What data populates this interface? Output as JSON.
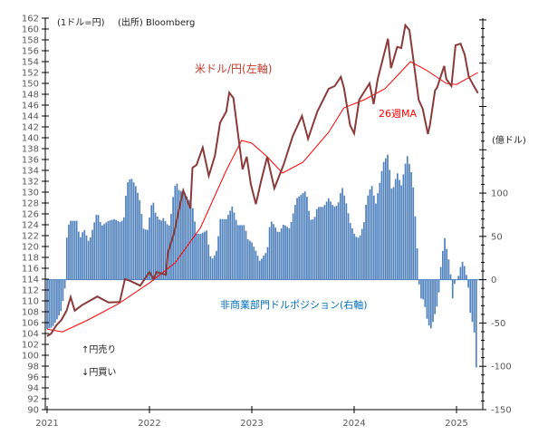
{
  "chart_data": {
    "type": "line+bar",
    "unit_note": "(1ドル=円)",
    "source": "(出所) Bloomberg",
    "right_unit": "(億ドル)",
    "annotations": {
      "yen_sell": "↑円売り",
      "yen_buy": "↓円買い"
    },
    "left_axis": {
      "range": [
        90,
        162
      ],
      "step": 2
    },
    "right_axis": {
      "range": [
        -150,
        302
      ],
      "ticks": [
        -150,
        -100,
        -50,
        0,
        50,
        100
      ]
    },
    "x_axis": {
      "range": [
        2021,
        2025.3
      ],
      "ticks": [
        2021,
        2022,
        2023,
        2024,
        2025
      ],
      "tick_labels": [
        "2021",
        "2022",
        "2023",
        "2024",
        "2025"
      ]
    },
    "colors": {
      "usdjpy": "#8b3a3a",
      "ma": "#ff0000",
      "bars": "#4f81bd",
      "bar_label": "#0070c0",
      "usdjpy_label": "#c0392b"
    },
    "series": [
      {
        "name": "米ドル/円(左軸)",
        "axis": "left",
        "kind": "line",
        "points": [
          [
            2021.0,
            103.5
          ],
          [
            2021.04,
            104
          ],
          [
            2021.09,
            105.5
          ],
          [
            2021.14,
            106.5
          ],
          [
            2021.19,
            108.2
          ],
          [
            2021.23,
            110.7
          ],
          [
            2021.27,
            108.2
          ],
          [
            2021.34,
            109.2
          ],
          [
            2021.49,
            110.8
          ],
          [
            2021.6,
            109.7
          ],
          [
            2021.71,
            109.8
          ],
          [
            2021.76,
            114
          ],
          [
            2021.81,
            113.7
          ],
          [
            2021.91,
            112.8
          ],
          [
            2022.0,
            115.3
          ],
          [
            2022.04,
            114
          ],
          [
            2022.07,
            115.3
          ],
          [
            2022.16,
            114.8
          ],
          [
            2022.18,
            118.7
          ],
          [
            2022.24,
            122.5
          ],
          [
            2022.33,
            130.3
          ],
          [
            2022.4,
            127
          ],
          [
            2022.42,
            134.5
          ],
          [
            2022.46,
            135
          ],
          [
            2022.52,
            138.2
          ],
          [
            2022.58,
            133
          ],
          [
            2022.64,
            136.7
          ],
          [
            2022.69,
            142.8
          ],
          [
            2022.75,
            144.8
          ],
          [
            2022.78,
            148.3
          ],
          [
            2022.82,
            147.3
          ],
          [
            2022.87,
            140
          ],
          [
            2022.91,
            134.2
          ],
          [
            2022.95,
            136.5
          ],
          [
            2022.99,
            131.5
          ],
          [
            2023.04,
            127.8
          ],
          [
            2023.09,
            132
          ],
          [
            2023.15,
            136.5
          ],
          [
            2023.22,
            130.7
          ],
          [
            2023.31,
            135
          ],
          [
            2023.4,
            140.3
          ],
          [
            2023.49,
            144
          ],
          [
            2023.55,
            139.8
          ],
          [
            2023.64,
            144.8
          ],
          [
            2023.75,
            149
          ],
          [
            2023.81,
            149.5
          ],
          [
            2023.87,
            151.2
          ],
          [
            2023.9,
            149.2
          ],
          [
            2023.96,
            142.3
          ],
          [
            2024.0,
            140.8
          ],
          [
            2024.05,
            147
          ],
          [
            2024.15,
            150
          ],
          [
            2024.19,
            146.2
          ],
          [
            2024.23,
            150.8
          ],
          [
            2024.33,
            158.2
          ],
          [
            2024.36,
            152.8
          ],
          [
            2024.42,
            156.7
          ],
          [
            2024.46,
            156.5
          ],
          [
            2024.5,
            160.7
          ],
          [
            2024.54,
            159.8
          ],
          [
            2024.58,
            154.2
          ],
          [
            2024.63,
            147
          ],
          [
            2024.67,
            145.3
          ],
          [
            2024.72,
            140.7
          ],
          [
            2024.74,
            142.3
          ],
          [
            2024.79,
            148.7
          ],
          [
            2024.81,
            149.2
          ],
          [
            2024.88,
            153.2
          ],
          [
            2024.9,
            150.8
          ],
          [
            2024.95,
            149.5
          ],
          [
            2024.99,
            157
          ],
          [
            2025.04,
            157.3
          ],
          [
            2025.08,
            155.3
          ],
          [
            2025.12,
            151.2
          ],
          [
            2025.17,
            149.5
          ],
          [
            2025.21,
            148.2
          ]
        ]
      },
      {
        "name": "26週MA",
        "axis": "left",
        "kind": "line",
        "points": [
          [
            2021.0,
            104.8
          ],
          [
            2021.15,
            104.3
          ],
          [
            2021.4,
            106.5
          ],
          [
            2021.7,
            109.5
          ],
          [
            2022.0,
            113.3
          ],
          [
            2022.25,
            117
          ],
          [
            2022.5,
            123.5
          ],
          [
            2022.75,
            134
          ],
          [
            2022.9,
            139.5
          ],
          [
            2023.0,
            139
          ],
          [
            2023.15,
            136.5
          ],
          [
            2023.3,
            133.5
          ],
          [
            2023.5,
            135.5
          ],
          [
            2023.75,
            141
          ],
          [
            2023.9,
            145.5
          ],
          [
            2024.1,
            147
          ],
          [
            2024.3,
            149
          ],
          [
            2024.45,
            152
          ],
          [
            2024.55,
            154
          ],
          [
            2024.7,
            152.5
          ],
          [
            2024.9,
            150
          ],
          [
            2025.0,
            149.8
          ],
          [
            2025.21,
            152
          ]
        ]
      },
      {
        "name": "非商業部門ドルポジション(右軸)",
        "axis": "right",
        "kind": "bar",
        "points": [
          [
            2021.0,
            -57
          ],
          [
            2021.05,
            -55
          ],
          [
            2021.1,
            -45
          ],
          [
            2021.14,
            -35
          ],
          [
            2021.18,
            -5
          ],
          [
            2021.19,
            45
          ],
          [
            2021.2,
            61
          ],
          [
            2021.23,
            68
          ],
          [
            2021.29,
            68
          ],
          [
            2021.32,
            47
          ],
          [
            2021.36,
            59
          ],
          [
            2021.41,
            43
          ],
          [
            2021.45,
            61
          ],
          [
            2021.49,
            79
          ],
          [
            2021.53,
            62
          ],
          [
            2021.6,
            68
          ],
          [
            2021.66,
            70
          ],
          [
            2021.72,
            66
          ],
          [
            2021.75,
            72
          ],
          [
            2021.78,
            111
          ],
          [
            2021.82,
            118
          ],
          [
            2021.87,
            107
          ],
          [
            2021.91,
            89
          ],
          [
            2021.94,
            59
          ],
          [
            2021.98,
            57
          ],
          [
            2022.03,
            94
          ],
          [
            2022.06,
            76
          ],
          [
            2022.11,
            67
          ],
          [
            2022.13,
            72
          ],
          [
            2022.19,
            61
          ],
          [
            2022.22,
            82
          ],
          [
            2022.24,
            107
          ],
          [
            2022.27,
            111
          ],
          [
            2022.29,
            103
          ],
          [
            2022.34,
            101
          ],
          [
            2022.42,
            85
          ],
          [
            2022.46,
            53
          ],
          [
            2022.5,
            53
          ],
          [
            2022.56,
            57
          ],
          [
            2022.59,
            28
          ],
          [
            2022.62,
            24
          ],
          [
            2022.66,
            35
          ],
          [
            2022.69,
            70
          ],
          [
            2022.75,
            70
          ],
          [
            2022.81,
            85
          ],
          [
            2022.86,
            63
          ],
          [
            2022.93,
            63
          ],
          [
            2022.96,
            47
          ],
          [
            2023.0,
            43
          ],
          [
            2023.04,
            33
          ],
          [
            2023.08,
            21
          ],
          [
            2023.11,
            27
          ],
          [
            2023.15,
            33
          ],
          [
            2023.18,
            69
          ],
          [
            2023.22,
            63
          ],
          [
            2023.26,
            53
          ],
          [
            2023.31,
            64
          ],
          [
            2023.37,
            59
          ],
          [
            2023.42,
            85
          ],
          [
            2023.44,
            94
          ],
          [
            2023.49,
            99
          ],
          [
            2023.53,
            103
          ],
          [
            2023.57,
            69
          ],
          [
            2023.61,
            70
          ],
          [
            2023.64,
            84
          ],
          [
            2023.7,
            84
          ],
          [
            2023.75,
            94
          ],
          [
            2023.8,
            84
          ],
          [
            2023.84,
            86
          ],
          [
            2023.88,
            108
          ],
          [
            2023.92,
            90
          ],
          [
            2023.96,
            66
          ],
          [
            2024.01,
            50
          ],
          [
            2024.05,
            48
          ],
          [
            2024.1,
            68
          ],
          [
            2024.12,
            92
          ],
          [
            2024.17,
            110
          ],
          [
            2024.21,
            87
          ],
          [
            2024.26,
            118
          ],
          [
            2024.28,
            134
          ],
          [
            2024.33,
            145
          ],
          [
            2024.37,
            100
          ],
          [
            2024.42,
            124
          ],
          [
            2024.46,
            108
          ],
          [
            2024.5,
            134
          ],
          [
            2024.52,
            143
          ],
          [
            2024.57,
            118
          ],
          [
            2024.59,
            85
          ],
          [
            2024.63,
            8
          ],
          [
            2024.64,
            -21
          ],
          [
            2024.68,
            -23
          ],
          [
            2024.7,
            -37
          ],
          [
            2024.72,
            -51
          ],
          [
            2024.76,
            -58
          ],
          [
            2024.77,
            -48
          ],
          [
            2024.81,
            -30
          ],
          [
            2024.83,
            -12
          ],
          [
            2024.85,
            21
          ],
          [
            2024.87,
            37
          ],
          [
            2024.89,
            52
          ],
          [
            2024.9,
            38
          ],
          [
            2024.93,
            19
          ],
          [
            2024.95,
            -2
          ],
          [
            2024.96,
            -23
          ],
          [
            2024.98,
            -5
          ],
          [
            2025.03,
            7
          ],
          [
            2025.04,
            16
          ],
          [
            2025.07,
            24
          ],
          [
            2025.08,
            12
          ],
          [
            2025.11,
            0
          ],
          [
            2025.12,
            -17
          ],
          [
            2025.14,
            -46
          ],
          [
            2025.17,
            -52
          ],
          [
            2025.18,
            -81
          ],
          [
            2025.2,
            -114
          ]
        ]
      }
    ],
    "labels": {
      "usdjpy": "米ドル/円(左軸)",
      "ma": "26週MA",
      "position": "非商業部門ドルポジション(右軸)"
    }
  }
}
